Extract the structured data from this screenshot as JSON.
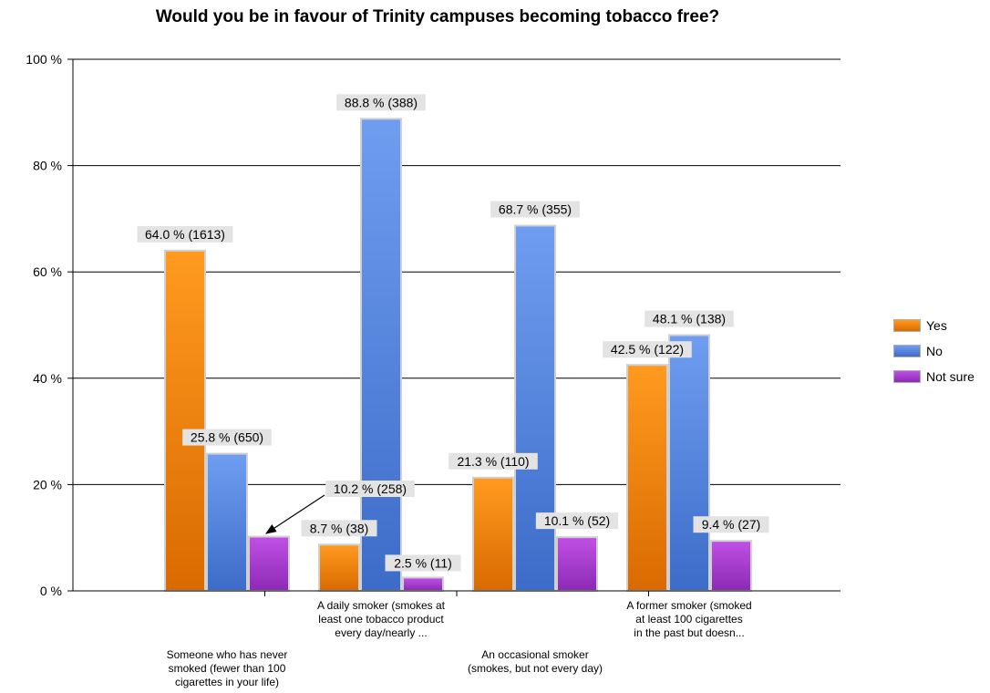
{
  "chart_data": {
    "type": "bar",
    "title": "Would you be in favour of Trinity campuses becoming tobacco free?",
    "categories": [
      "Someone who has never smoked (fewer than 100 cigarettes in your life)",
      "A daily smoker (smokes at least one tobacco product every day/nearly ...",
      "An occasional smoker (smokes, but not every day)",
      "A former smoker (smoked at least 100 cigarettes in the past but doesn..."
    ],
    "category_label_lines": [
      [
        "Someone who has never",
        "smoked (fewer than 100",
        "cigarettes in your life)"
      ],
      [
        "A daily smoker (smokes at",
        "least one tobacco product",
        "every day/nearly ..."
      ],
      [
        "An occasional smoker",
        "(smokes, but not every day)"
      ],
      [
        "A former smoker (smoked",
        "at least 100 cigarettes",
        "in the past but doesn..."
      ]
    ],
    "series": [
      {
        "name": "Yes",
        "color": "#f07f09",
        "values": [
          64.0,
          8.7,
          21.3,
          42.5
        ],
        "labels": [
          "64.0 % (1613)",
          "8.7 % (38)",
          "21.3 % (110)",
          "42.5 % (122)"
        ]
      },
      {
        "name": "No",
        "color": "#4f81e0",
        "values": [
          25.8,
          88.8,
          68.7,
          48.1
        ],
        "labels": [
          "25.8 % (650)",
          "88.8 % (388)",
          "68.7 % (355)",
          "48.1 % (138)"
        ]
      },
      {
        "name": "Not sure",
        "color": "#a83ad0",
        "values": [
          10.2,
          2.5,
          10.1,
          9.4
        ],
        "labels": [
          "10.2 % (258)",
          "2.5 % (11)",
          "10.1 % (52)",
          "9.4 % (27)"
        ]
      }
    ],
    "ylim": [
      0,
      100
    ],
    "yticks": [
      0,
      20,
      40,
      60,
      80,
      100
    ],
    "ytick_labels": [
      "0 %",
      "20 %",
      "40 %",
      "60 %",
      "80 %",
      "100 %"
    ],
    "xlabel": "",
    "ylabel": "",
    "grid": true,
    "legend_position": "right"
  }
}
